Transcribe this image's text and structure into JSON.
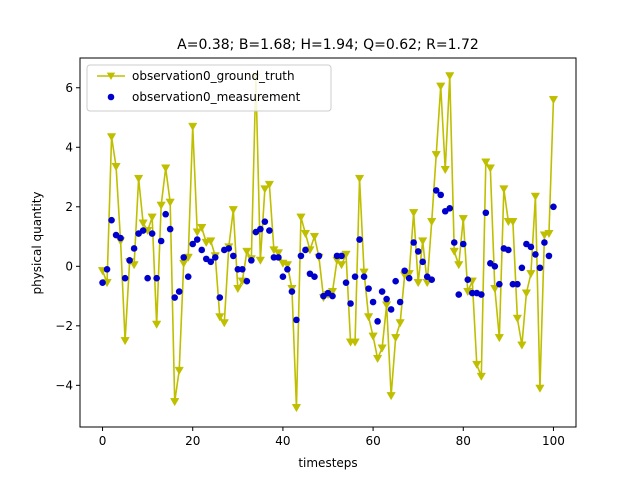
{
  "chart_data": {
    "type": "line",
    "title": "A=0.38; B=1.68; H=1.94; Q=0.62; R=1.72",
    "xlabel": "timesteps",
    "ylabel": "physical quantity",
    "xlim": [
      -5,
      105
    ],
    "ylim": [
      -5.4,
      7.0
    ],
    "xticks": [
      0,
      20,
      40,
      60,
      80,
      100
    ],
    "yticks": [
      -4,
      -2,
      0,
      2,
      4,
      6
    ],
    "grid": false,
    "legend_position": "top-left",
    "x": [
      0,
      1,
      2,
      3,
      4,
      5,
      6,
      7,
      8,
      9,
      10,
      11,
      12,
      13,
      14,
      15,
      16,
      17,
      18,
      19,
      20,
      21,
      22,
      23,
      24,
      25,
      26,
      27,
      28,
      29,
      30,
      31,
      32,
      33,
      34,
      35,
      36,
      37,
      38,
      39,
      40,
      41,
      42,
      43,
      44,
      45,
      46,
      47,
      48,
      49,
      50,
      51,
      52,
      53,
      54,
      55,
      56,
      57,
      58,
      59,
      60,
      61,
      62,
      63,
      64,
      65,
      66,
      67,
      68,
      69,
      70,
      71,
      72,
      73,
      74,
      75,
      76,
      77,
      78,
      79,
      80,
      81,
      82,
      83,
      84,
      85,
      86,
      87,
      88,
      89,
      90,
      91,
      92,
      93,
      94,
      95,
      96,
      97,
      98,
      99,
      100
    ],
    "series": [
      {
        "name": "observation0_ground_truth",
        "style": "line-marker-triangle-down",
        "color": "#bfbf00",
        "values": [
          -0.15,
          -0.55,
          4.35,
          3.35,
          0.85,
          -2.5,
          0.15,
          0.05,
          2.95,
          1.45,
          1.2,
          1.65,
          -1.95,
          2.05,
          3.3,
          2.15,
          -4.55,
          -3.5,
          0.1,
          0.3,
          4.7,
          1.15,
          1.3,
          0.8,
          0.85,
          0.35,
          -1.7,
          -1.9,
          0.65,
          1.9,
          -0.75,
          -0.5,
          0.5,
          0.25,
          6.35,
          0.2,
          2.6,
          2.75,
          0.55,
          0.45,
          0.1,
          0.05,
          -0.75,
          -4.75,
          1.65,
          1.1,
          0.55,
          1.0,
          0.3,
          -1.05,
          -0.95,
          -0.85,
          0.2,
          0.05,
          0.4,
          -2.55,
          -2.55,
          2.95,
          -0.2,
          -1.7,
          -2.35,
          -3.1,
          -2.75,
          -1.3,
          -4.35,
          -2.4,
          -1.9,
          -0.3,
          -0.25,
          1.8,
          -0.55,
          0.85,
          -0.55,
          1.5,
          3.75,
          6.05,
          3.25,
          6.4,
          0.5,
          0.05,
          1.6,
          -0.85,
          -0.5,
          -3.3,
          -3.7,
          3.5,
          3.3,
          -0.75,
          -2.4,
          2.6,
          1.5,
          1.5,
          -1.75,
          -2.65,
          -0.9,
          -0.25,
          2.35,
          -4.1,
          1.05,
          1.1,
          5.6
        ]
      },
      {
        "name": "observation0_measurement",
        "style": "scatter",
        "color": "#0000cc",
        "values": [
          -0.55,
          -0.1,
          1.55,
          1.05,
          0.95,
          -0.4,
          0.2,
          0.6,
          1.1,
          1.2,
          -0.4,
          1.1,
          -0.4,
          0.85,
          1.75,
          1.25,
          -1.05,
          -0.85,
          0.3,
          -0.35,
          0.75,
          0.9,
          0.55,
          0.25,
          0.15,
          0.3,
          -1.05,
          0.55,
          0.6,
          0.35,
          -0.1,
          -0.1,
          -0.5,
          0.2,
          1.15,
          1.25,
          1.5,
          1.2,
          0.3,
          0.3,
          -0.35,
          -0.1,
          -0.85,
          -1.8,
          0.35,
          0.55,
          -0.25,
          -0.35,
          0.35,
          -1.0,
          -0.9,
          -1.0,
          0.35,
          0.35,
          -0.55,
          -1.25,
          -0.35,
          0.9,
          -0.35,
          -0.75,
          -1.2,
          -1.85,
          -0.85,
          -1.1,
          -1.45,
          -0.5,
          -1.2,
          -0.15,
          -0.4,
          0.8,
          0.5,
          0.15,
          -0.35,
          -0.45,
          2.55,
          2.4,
          1.85,
          1.95,
          0.8,
          -0.95,
          0.75,
          -0.45,
          -0.9,
          -0.9,
          -0.95,
          1.8,
          0.1,
          0.0,
          -0.6,
          0.6,
          0.55,
          -0.6,
          -0.6,
          -0.05,
          0.75,
          0.65,
          0.4,
          -0.05,
          0.8,
          0.35,
          2.0
        ]
      }
    ]
  }
}
